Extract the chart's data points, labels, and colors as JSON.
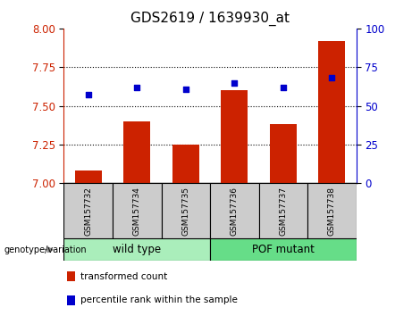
{
  "title": "GDS2619 / 1639930_at",
  "samples": [
    "GSM157732",
    "GSM157734",
    "GSM157735",
    "GSM157736",
    "GSM157737",
    "GSM157738"
  ],
  "transformed_count": [
    7.08,
    7.4,
    7.25,
    7.6,
    7.38,
    7.92
  ],
  "percentile_rank": [
    57,
    62,
    61,
    65,
    62,
    68
  ],
  "ylim_left": [
    7.0,
    8.0
  ],
  "ylim_right": [
    0,
    100
  ],
  "yticks_left": [
    7.0,
    7.25,
    7.5,
    7.75,
    8.0
  ],
  "yticks_right": [
    0,
    25,
    50,
    75,
    100
  ],
  "bar_color": "#cc2200",
  "dot_color": "#0000cc",
  "left_axis_color": "#cc2200",
  "right_axis_color": "#0000cc",
  "groups": [
    {
      "label": "wild type",
      "indices": [
        0,
        1,
        2
      ],
      "color": "#aaeebb"
    },
    {
      "label": "POF mutant",
      "indices": [
        3,
        4,
        5
      ],
      "color": "#66dd88"
    }
  ],
  "group_label": "genotype/variation",
  "legend_labels": [
    "transformed count",
    "percentile rank within the sample"
  ],
  "legend_colors": [
    "#cc2200",
    "#0000cc"
  ],
  "title_fontsize": 11,
  "tick_fontsize": 8.5,
  "bar_width": 0.55
}
